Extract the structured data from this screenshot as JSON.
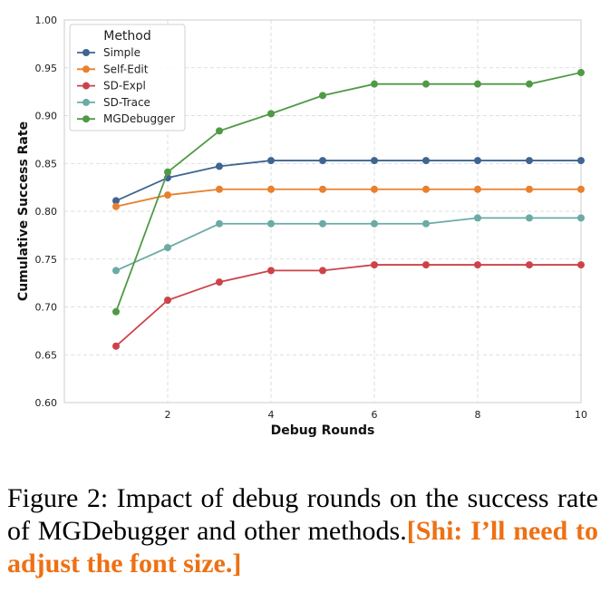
{
  "chart_data": {
    "type": "line",
    "xlabel": "Debug Rounds",
    "ylabel": "Cumulative Success Rate",
    "xlim": [
      0,
      10
    ],
    "ylim": [
      0.6,
      1.0
    ],
    "xticks": [
      2,
      4,
      6,
      8,
      10
    ],
    "yticks": [
      0.6,
      0.65,
      0.7,
      0.75,
      0.8,
      0.85,
      0.9,
      0.95,
      1.0
    ],
    "ytick_labels": [
      "0.60",
      "0.65",
      "0.70",
      "0.75",
      "0.80",
      "0.85",
      "0.90",
      "0.95",
      "1.00"
    ],
    "grid": true,
    "legend_title": "Method",
    "legend_position": "top-left",
    "x": [
      1,
      2,
      3,
      4,
      5,
      6,
      7,
      8,
      9,
      10
    ],
    "series": [
      {
        "name": "Simple",
        "color": "#3f6591",
        "values": [
          0.811,
          0.835,
          0.847,
          0.853,
          0.853,
          0.853,
          0.853,
          0.853,
          0.853,
          0.853
        ]
      },
      {
        "name": "Self-Edit",
        "color": "#e8802d",
        "values": [
          0.805,
          0.817,
          0.823,
          0.823,
          0.823,
          0.823,
          0.823,
          0.823,
          0.823,
          0.823
        ]
      },
      {
        "name": "SD-Expl",
        "color": "#cd4249",
        "values": [
          0.659,
          0.707,
          0.726,
          0.738,
          0.738,
          0.744,
          0.744,
          0.744,
          0.744,
          0.744
        ]
      },
      {
        "name": "SD-Trace",
        "color": "#6aaba5",
        "values": [
          0.738,
          0.762,
          0.787,
          0.787,
          0.787,
          0.787,
          0.787,
          0.793,
          0.793,
          0.793
        ]
      },
      {
        "name": "MGDebugger",
        "color": "#509a46",
        "values": [
          0.695,
          0.841,
          0.884,
          0.902,
          0.921,
          0.933,
          0.933,
          0.933,
          0.933,
          0.945
        ]
      }
    ]
  },
  "caption": {
    "text": "Figure 2: Impact of debug rounds on the success rate of MGDebugger and other methods.",
    "note": "[Shi: I’ll need to adjust the font size.]"
  }
}
